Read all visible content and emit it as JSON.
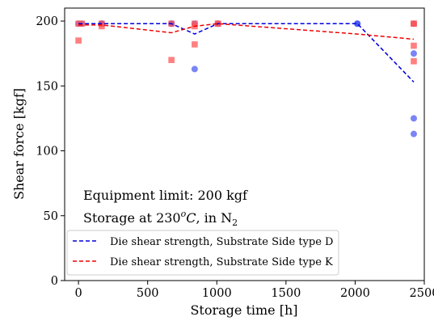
{
  "chart_data": {
    "type": "scatter",
    "xlabel": "Storage time [h]",
    "ylabel": "Shear force [kgf]",
    "xlim": [
      -100,
      2500
    ],
    "ylim": [
      0,
      210
    ],
    "xticks": [
      0,
      500,
      1000,
      1500,
      2000,
      2500
    ],
    "yticks": [
      0,
      50,
      100,
      150,
      200
    ],
    "grid": false,
    "annotations": [
      {
        "text": "Equipment limit: 200 kgf"
      },
      {
        "text_prefix": "Storage at 230",
        "superscript": "o",
        "italic_unit": "C",
        "text_mid": ", in N",
        "subscript": "2"
      }
    ],
    "legend_position": "lower-left",
    "series": [
      {
        "name": "Die shear strength, Substrate Side type D",
        "color": "#0000dd",
        "point_color": "#3344ee",
        "marker": "circle",
        "line_style": "dashed",
        "mean_line": {
          "x": [
            0,
            168,
            672,
            840,
            1008,
            2016,
            2424
          ],
          "y": [
            198,
            198,
            198,
            190,
            198,
            198,
            153
          ]
        },
        "points": [
          {
            "x": 0,
            "y": 198
          },
          {
            "x": 24,
            "y": 198
          },
          {
            "x": 168,
            "y": 198
          },
          {
            "x": 168,
            "y": 198
          },
          {
            "x": 672,
            "y": 198
          },
          {
            "x": 672,
            "y": 198
          },
          {
            "x": 840,
            "y": 198
          },
          {
            "x": 840,
            "y": 163
          },
          {
            "x": 1008,
            "y": 198
          },
          {
            "x": 1008,
            "y": 198
          },
          {
            "x": 2016,
            "y": 198
          },
          {
            "x": 2016,
            "y": 198
          },
          {
            "x": 2424,
            "y": 198
          },
          {
            "x": 2424,
            "y": 175
          },
          {
            "x": 2424,
            "y": 125
          },
          {
            "x": 2424,
            "y": 113
          }
        ]
      },
      {
        "name": "Die shear strength, Substrate Side type K",
        "color": "#ee0000",
        "point_color": "#ff5555",
        "marker": "square",
        "line_style": "dashed",
        "mean_line": {
          "x": [
            0,
            168,
            672,
            840,
            1008,
            2016,
            2424
          ],
          "y": [
            197,
            197,
            191,
            196,
            198,
            190,
            186
          ]
        },
        "points": [
          {
            "x": 0,
            "y": 198
          },
          {
            "x": 0,
            "y": 185
          },
          {
            "x": 24,
            "y": 198
          },
          {
            "x": 168,
            "y": 198
          },
          {
            "x": 168,
            "y": 196
          },
          {
            "x": 672,
            "y": 198
          },
          {
            "x": 672,
            "y": 170
          },
          {
            "x": 840,
            "y": 198
          },
          {
            "x": 840,
            "y": 196
          },
          {
            "x": 840,
            "y": 182
          },
          {
            "x": 1008,
            "y": 198
          },
          {
            "x": 1008,
            "y": 198
          },
          {
            "x": 2424,
            "y": 198
          },
          {
            "x": 2424,
            "y": 181
          },
          {
            "x": 2424,
            "y": 169
          },
          {
            "x": 2424,
            "y": 198
          }
        ]
      }
    ]
  }
}
